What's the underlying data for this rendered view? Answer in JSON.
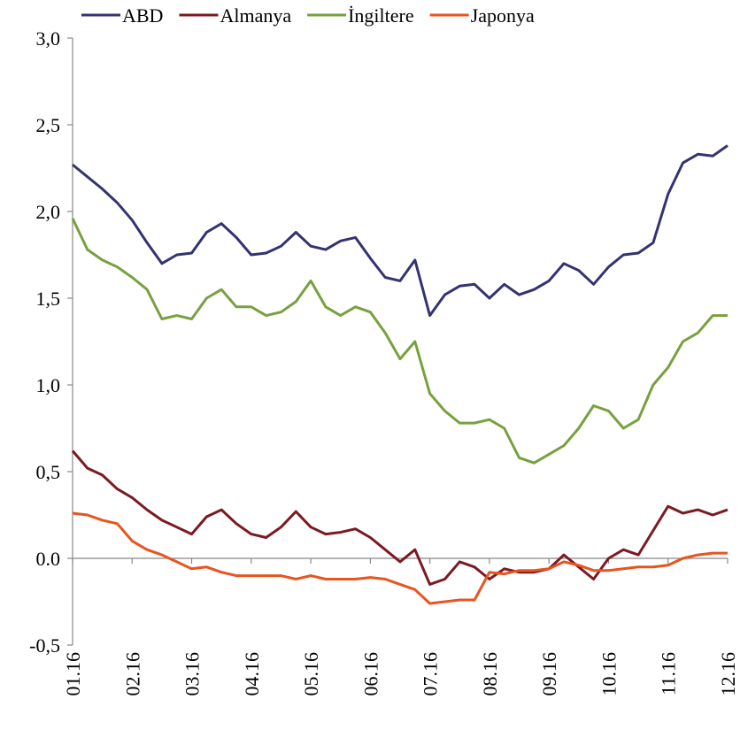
{
  "chart_data": {
    "type": "line",
    "categories": [
      "01.16",
      null,
      null,
      null,
      "02.16",
      null,
      null,
      null,
      "03.16",
      null,
      null,
      null,
      "04.16",
      null,
      null,
      null,
      "05.16",
      null,
      null,
      null,
      "06.16",
      null,
      null,
      null,
      "07.16",
      null,
      null,
      null,
      "08.16",
      null,
      null,
      null,
      "09.16",
      null,
      null,
      null,
      "10.16",
      null,
      null,
      null,
      "11.16",
      null,
      null,
      null,
      "12.16"
    ],
    "series": [
      {
        "name": "ABD",
        "color": "#333372",
        "values": [
          2.27,
          2.2,
          2.13,
          2.05,
          1.95,
          1.82,
          1.7,
          1.75,
          1.76,
          1.88,
          1.93,
          1.85,
          1.75,
          1.76,
          1.8,
          1.88,
          1.8,
          1.78,
          1.83,
          1.85,
          1.73,
          1.62,
          1.6,
          1.72,
          1.4,
          1.52,
          1.57,
          1.58,
          1.5,
          1.58,
          1.52,
          1.55,
          1.6,
          1.7,
          1.66,
          1.58,
          1.68,
          1.75,
          1.76,
          1.82,
          2.1,
          2.28,
          2.33,
          2.32,
          2.38
        ]
      },
      {
        "name": "Almanya",
        "color": "#7b1a20",
        "values": [
          0.62,
          0.52,
          0.48,
          0.4,
          0.35,
          0.28,
          0.22,
          0.18,
          0.14,
          0.24,
          0.28,
          0.2,
          0.14,
          0.12,
          0.18,
          0.27,
          0.18,
          0.14,
          0.15,
          0.17,
          0.12,
          0.05,
          -0.02,
          0.05,
          -0.15,
          -0.12,
          -0.02,
          -0.05,
          -0.12,
          -0.06,
          -0.08,
          -0.08,
          -0.06,
          0.02,
          -0.05,
          -0.12,
          0.0,
          0.05,
          0.02,
          0.16,
          0.3,
          0.26,
          0.28,
          0.25,
          0.28
        ]
      },
      {
        "name": "İngiltere",
        "color": "#77a13e",
        "values": [
          1.96,
          1.78,
          1.72,
          1.68,
          1.62,
          1.55,
          1.38,
          1.4,
          1.38,
          1.5,
          1.55,
          1.45,
          1.45,
          1.4,
          1.42,
          1.48,
          1.6,
          1.45,
          1.4,
          1.45,
          1.42,
          1.3,
          1.15,
          1.25,
          0.95,
          0.85,
          0.78,
          0.78,
          0.8,
          0.75,
          0.58,
          0.55,
          0.6,
          0.65,
          0.75,
          0.88,
          0.85,
          0.75,
          0.8,
          1.0,
          1.1,
          1.25,
          1.3,
          1.4,
          1.4
        ]
      },
      {
        "name": "Japonya",
        "color": "#e8541e",
        "values": [
          0.26,
          0.25,
          0.22,
          0.2,
          0.1,
          0.05,
          0.02,
          -0.02,
          -0.06,
          -0.05,
          -0.08,
          -0.1,
          -0.1,
          -0.1,
          -0.1,
          -0.12,
          -0.1,
          -0.12,
          -0.12,
          -0.12,
          -0.11,
          -0.12,
          -0.15,
          -0.18,
          -0.26,
          -0.25,
          -0.24,
          -0.24,
          -0.08,
          -0.09,
          -0.07,
          -0.07,
          -0.06,
          -0.02,
          -0.04,
          -0.07,
          -0.07,
          -0.06,
          -0.05,
          -0.05,
          -0.04,
          0.0,
          0.02,
          0.03,
          0.03
        ]
      }
    ],
    "ylim": [
      -0.5,
      3.0
    ],
    "yticks": [
      {
        "value": -0.5,
        "label": "-0,5"
      },
      {
        "value": 0,
        "label": "0.0"
      },
      {
        "value": 0.5,
        "label": "0,5"
      },
      {
        "value": 1.0,
        "label": "1,0"
      },
      {
        "value": 1.5,
        "label": "1,5"
      },
      {
        "value": 2.0,
        "label": "2,0"
      },
      {
        "value": 2.5,
        "label": "2,5"
      },
      {
        "value": 3.0,
        "label": "3,0"
      }
    ],
    "grid": false,
    "legend": "top"
  }
}
